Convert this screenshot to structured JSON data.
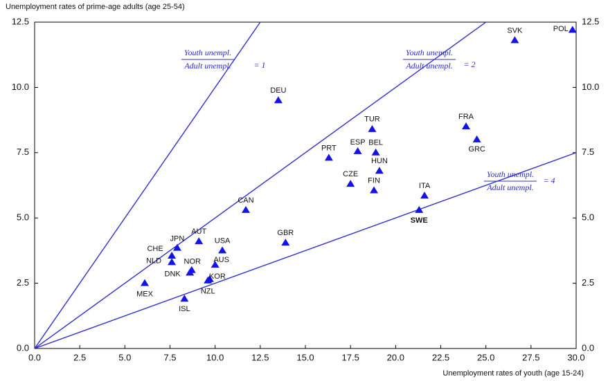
{
  "chart_data": {
    "type": "scatter",
    "y_axis_title": "Unemployment rates of prime-age adults (age 25-54)",
    "x_axis_title": "Unemployment rates of youth (age 15-24)",
    "xlim": [
      0,
      30
    ],
    "ylim": [
      0,
      12.5
    ],
    "xticks": [
      {
        "value": 0,
        "label": "0.0"
      },
      2.5,
      {
        "value": 5,
        "label": "5.0"
      },
      7.5,
      {
        "value": 10,
        "label": "10.0"
      },
      12.5,
      {
        "value": 15,
        "label": "15.0"
      },
      17.5,
      {
        "value": 20,
        "label": "20.0"
      },
      22.5,
      {
        "value": 25,
        "label": "25.0"
      },
      27.5,
      {
        "value": 30,
        "label": "30.0"
      }
    ],
    "yticks": [
      {
        "value": 0,
        "label": "0.0"
      },
      2.5,
      {
        "value": 5,
        "label": "5.0"
      },
      7.5,
      {
        "value": 10,
        "label": "10.0"
      },
      12.5
    ],
    "color": "#1414e6",
    "line_color": "#3030d0",
    "labels": [
      "POL",
      "SVK",
      "DEU",
      "FRA",
      "TUR",
      "GRC",
      "ESP",
      "BEL",
      "PRT",
      "HUN",
      "CZE",
      "FIN",
      "ITA",
      "SWE",
      "CAN",
      "GBR",
      "AUT",
      "USA",
      "JPN",
      "CHE",
      "NLD",
      "NOR",
      "AUS",
      "DNK",
      "KOR",
      "MEX",
      "ISL",
      "NZL"
    ],
    "x": [
      29.8,
      26.6,
      13.5,
      23.9,
      18.7,
      24.5,
      17.9,
      18.9,
      16.3,
      19.1,
      17.5,
      18.8,
      21.6,
      21.3,
      11.7,
      13.9,
      9.1,
      10.4,
      7.9,
      7.6,
      7.6,
      8.7,
      10.0,
      8.6,
      9.7,
      6.1,
      8.3,
      9.6
    ],
    "y": [
      12.2,
      11.8,
      9.5,
      8.5,
      8.4,
      8.0,
      7.55,
      7.5,
      7.3,
      6.8,
      6.3,
      6.05,
      5.85,
      5.3,
      5.3,
      4.05,
      4.1,
      3.75,
      3.85,
      3.55,
      3.3,
      3.0,
      3.2,
      2.9,
      2.65,
      2.5,
      1.9,
      2.6
    ],
    "reference_lines": [
      {
        "ratio": 1,
        "numerator": "Youth unempl.",
        "denominator": "Adult unempl.",
        "label": "= 1"
      },
      {
        "ratio": 2,
        "numerator": "Youth unempl.",
        "denominator": "Adult unempl.",
        "label": "= 2"
      },
      {
        "ratio": 4,
        "numerator": "Youth unempl.",
        "denominator": "Adult unempl.",
        "label": "= 4"
      }
    ]
  }
}
